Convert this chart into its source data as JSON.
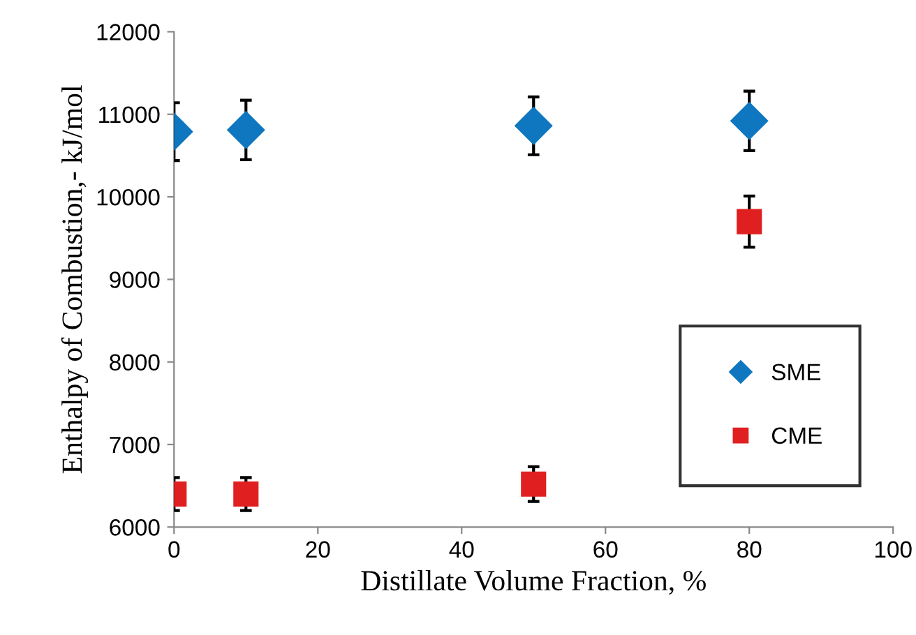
{
  "chart_data": {
    "type": "scatter",
    "xlabel": "Distillate Volume Fraction, %",
    "ylabel": "Enthalpy of Combustion,- kJ/mol",
    "x": [
      0,
      10,
      50,
      80
    ],
    "series": [
      {
        "name": "SME",
        "color": "#0f77bf",
        "marker": "diamond",
        "values": [
          10790,
          10810,
          10860,
          10920
        ],
        "errors": [
          350,
          360,
          350,
          360
        ]
      },
      {
        "name": "CME",
        "color": "#e02020",
        "marker": "square",
        "values": [
          6400,
          6400,
          6520,
          9700
        ],
        "errors": [
          200,
          200,
          210,
          310
        ]
      }
    ],
    "xlim": [
      0,
      100
    ],
    "xticks": [
      0,
      20,
      40,
      60,
      80,
      100
    ],
    "ylim": [
      6000,
      12000
    ],
    "yticks": [
      6000,
      7000,
      8000,
      9000,
      10000,
      11000,
      12000
    ],
    "grid": false,
    "legend": "bottom right"
  }
}
